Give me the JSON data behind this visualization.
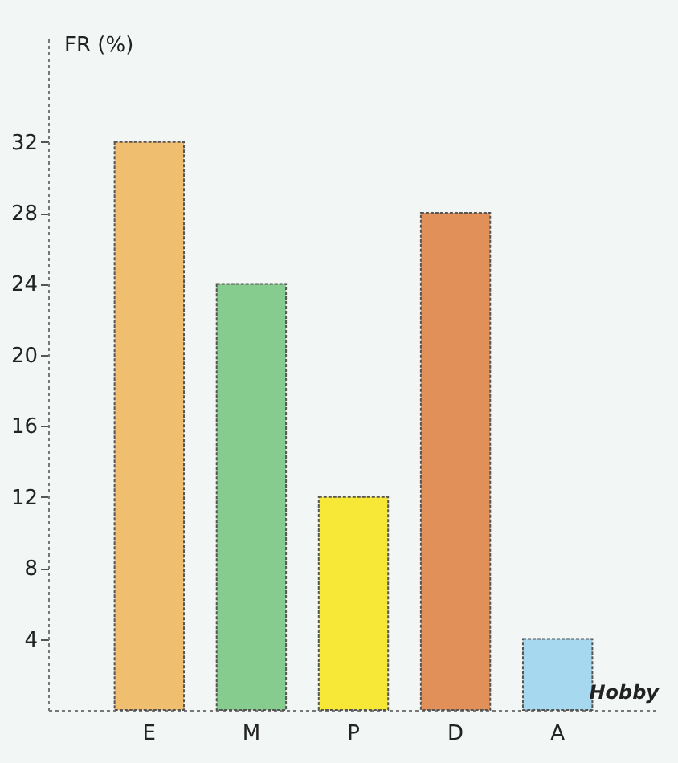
{
  "chart_data": {
    "type": "bar",
    "xlabel": "Hobby",
    "ylabel": "FR (%)",
    "categories": [
      "E",
      "M",
      "P",
      "D",
      "A"
    ],
    "values": [
      32,
      24,
      12,
      28,
      4
    ],
    "colors": [
      "#efbe6e",
      "#86cc8e",
      "#f7e838",
      "#e2905a",
      "#a6d8f0"
    ],
    "ylim": [
      0,
      38
    ],
    "yticks": [
      4,
      8,
      12,
      16,
      20,
      24,
      28,
      32
    ],
    "grid": false
  }
}
